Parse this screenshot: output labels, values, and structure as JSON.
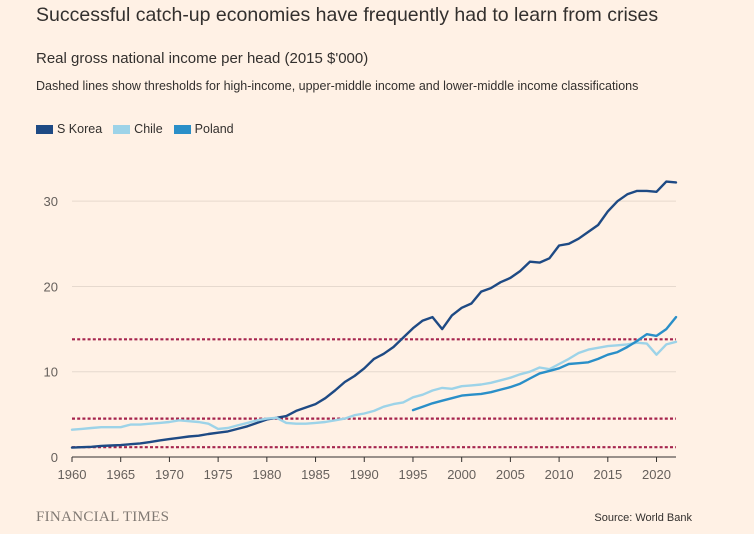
{
  "header": {
    "title": "Successful catch-up economies have frequently had to learn from crises",
    "subtitle": "Real gross national income per head (2015 $'000)",
    "note": "Dashed lines show thresholds for high-income, upper-middle income and lower-middle income classifications"
  },
  "footer": {
    "logo": "FINANCIAL TIMES",
    "source": "Source: World Bank"
  },
  "chart_data": {
    "type": "line",
    "x_ticks": [
      1960,
      1965,
      1970,
      1975,
      1980,
      1985,
      1990,
      1995,
      2000,
      2005,
      2010,
      2015,
      2020
    ],
    "y_ticks": [
      0,
      10,
      20,
      30
    ],
    "xlim": [
      1960,
      2022
    ],
    "ylim": [
      0,
      36
    ],
    "grid": "horizontal",
    "legend_position": "top-left",
    "thresholds": [
      {
        "value": 13.8,
        "color": "#a5244d"
      },
      {
        "value": 4.5,
        "color": "#a5244d"
      },
      {
        "value": 1.15,
        "color": "#a5244d"
      }
    ],
    "series": [
      {
        "name": "S Korea",
        "color": "#1e4a84",
        "x": [
          1960,
          1961,
          1962,
          1963,
          1964,
          1965,
          1966,
          1967,
          1968,
          1969,
          1970,
          1971,
          1972,
          1973,
          1974,
          1975,
          1976,
          1977,
          1978,
          1979,
          1980,
          1981,
          1982,
          1983,
          1984,
          1985,
          1986,
          1987,
          1988,
          1989,
          1990,
          1991,
          1992,
          1993,
          1994,
          1995,
          1996,
          1997,
          1998,
          1999,
          2000,
          2001,
          2002,
          2003,
          2004,
          2005,
          2006,
          2007,
          2008,
          2009,
          2010,
          2011,
          2012,
          2013,
          2014,
          2015,
          2016,
          2017,
          2018,
          2019,
          2020,
          2021,
          2022
        ],
        "y": [
          1.1,
          1.15,
          1.2,
          1.3,
          1.35,
          1.4,
          1.5,
          1.6,
          1.75,
          1.95,
          2.1,
          2.25,
          2.4,
          2.5,
          2.7,
          2.85,
          3.0,
          3.3,
          3.6,
          4.0,
          4.4,
          4.6,
          4.8,
          5.4,
          5.8,
          6.2,
          6.9,
          7.8,
          8.8,
          9.5,
          10.4,
          11.5,
          12.1,
          12.9,
          14.0,
          15.1,
          16.0,
          16.4,
          15.0,
          16.6,
          17.5,
          18.0,
          19.4,
          19.8,
          20.5,
          21.0,
          21.8,
          22.9,
          22.8,
          23.3,
          24.8,
          25.0,
          25.6,
          26.4,
          27.2,
          28.8,
          30.0,
          30.8,
          31.2,
          31.2,
          31.1,
          32.3,
          32.2
        ]
      },
      {
        "name": "Chile",
        "color": "#9dd3e8",
        "x": [
          1960,
          1961,
          1962,
          1963,
          1964,
          1965,
          1966,
          1967,
          1968,
          1969,
          1970,
          1971,
          1972,
          1973,
          1974,
          1975,
          1976,
          1977,
          1978,
          1979,
          1980,
          1981,
          1982,
          1983,
          1984,
          1985,
          1986,
          1987,
          1988,
          1989,
          1990,
          1991,
          1992,
          1993,
          1994,
          1995,
          1996,
          1997,
          1998,
          1999,
          2000,
          2001,
          2002,
          2003,
          2004,
          2005,
          2006,
          2007,
          2008,
          2009,
          2010,
          2011,
          2012,
          2013,
          2014,
          2015,
          2016,
          2017,
          2018,
          2019,
          2020,
          2021,
          2022
        ],
        "y": [
          3.2,
          3.3,
          3.4,
          3.5,
          3.5,
          3.5,
          3.8,
          3.8,
          3.9,
          4.0,
          4.1,
          4.3,
          4.2,
          4.1,
          3.9,
          3.3,
          3.4,
          3.7,
          4.0,
          4.3,
          4.5,
          4.6,
          4.0,
          3.9,
          3.9,
          4.0,
          4.1,
          4.3,
          4.5,
          4.9,
          5.1,
          5.4,
          5.9,
          6.2,
          6.4,
          7.0,
          7.3,
          7.8,
          8.1,
          8.0,
          8.3,
          8.4,
          8.5,
          8.7,
          9.0,
          9.3,
          9.7,
          10.0,
          10.5,
          10.3,
          10.9,
          11.5,
          12.2,
          12.6,
          12.8,
          13.0,
          13.1,
          13.2,
          13.4,
          13.3,
          12.0,
          13.2,
          13.5
        ]
      },
      {
        "name": "Poland",
        "color": "#2a8fc8",
        "x": [
          1995,
          1996,
          1997,
          1998,
          1999,
          2000,
          2001,
          2002,
          2003,
          2004,
          2005,
          2006,
          2007,
          2008,
          2009,
          2010,
          2011,
          2012,
          2013,
          2014,
          2015,
          2016,
          2017,
          2018,
          2019,
          2020,
          2021,
          2022
        ],
        "y": [
          5.5,
          5.9,
          6.3,
          6.6,
          6.9,
          7.2,
          7.3,
          7.4,
          7.6,
          7.9,
          8.2,
          8.6,
          9.2,
          9.8,
          10.1,
          10.4,
          10.9,
          11.0,
          11.1,
          11.5,
          12.0,
          12.3,
          12.9,
          13.6,
          14.4,
          14.2,
          15.0,
          16.4
        ]
      }
    ]
  }
}
